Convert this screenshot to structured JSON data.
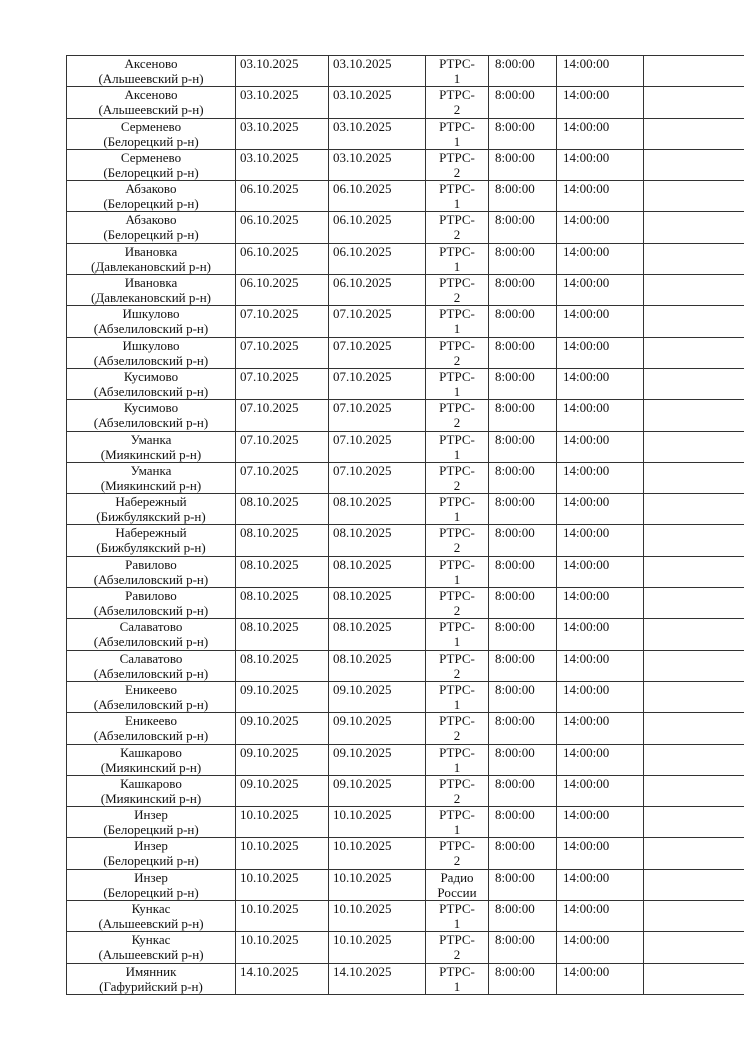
{
  "rows": [
    {
      "place": "Аксеново",
      "district": "(Альшеевский р-н)",
      "date_from": "03.10.2025",
      "date_to": "03.10.2025",
      "channel": "РТРС-",
      "channel_num": "1",
      "start": "8:00:00",
      "end": "14:00:00"
    },
    {
      "place": "Аксеново",
      "district": "(Альшеевский р-н)",
      "date_from": "03.10.2025",
      "date_to": "03.10.2025",
      "channel": "РТРС-",
      "channel_num": "2",
      "start": "8:00:00",
      "end": "14:00:00"
    },
    {
      "place": "Серменево",
      "district": "(Белорецкий р-н)",
      "date_from": "03.10.2025",
      "date_to": "03.10.2025",
      "channel": "РТРС-",
      "channel_num": "1",
      "start": "8:00:00",
      "end": "14:00:00"
    },
    {
      "place": "Серменево",
      "district": "(Белорецкий р-н)",
      "date_from": "03.10.2025",
      "date_to": "03.10.2025",
      "channel": "РТРС-",
      "channel_num": "2",
      "start": "8:00:00",
      "end": "14:00:00"
    },
    {
      "place": "Абзаково",
      "district": "(Белорецкий р-н)",
      "date_from": "06.10.2025",
      "date_to": "06.10.2025",
      "channel": "РТРС-",
      "channel_num": "1",
      "start": "8:00:00",
      "end": "14:00:00"
    },
    {
      "place": "Абзаково",
      "district": "(Белорецкий р-н)",
      "date_from": "06.10.2025",
      "date_to": "06.10.2025",
      "channel": "РТРС-",
      "channel_num": "2",
      "start": "8:00:00",
      "end": "14:00:00"
    },
    {
      "place": "Ивановка",
      "district": "(Давлекановский р-н)",
      "date_from": "06.10.2025",
      "date_to": "06.10.2025",
      "channel": "РТРС-",
      "channel_num": "1",
      "start": "8:00:00",
      "end": "14:00:00"
    },
    {
      "place": "Ивановка",
      "district": "(Давлекановский р-н)",
      "date_from": "06.10.2025",
      "date_to": "06.10.2025",
      "channel": "РТРС-",
      "channel_num": "2",
      "start": "8:00:00",
      "end": "14:00:00"
    },
    {
      "place": "Ишкулово",
      "district": "(Абзелиловский р-н)",
      "date_from": "07.10.2025",
      "date_to": "07.10.2025",
      "channel": "РТРС-",
      "channel_num": "1",
      "start": "8:00:00",
      "end": "14:00:00"
    },
    {
      "place": "Ишкулово",
      "district": "(Абзелиловский р-н)",
      "date_from": "07.10.2025",
      "date_to": "07.10.2025",
      "channel": "РТРС-",
      "channel_num": "2",
      "start": "8:00:00",
      "end": "14:00:00"
    },
    {
      "place": "Кусимово",
      "district": "(Абзелиловский р-н)",
      "date_from": "07.10.2025",
      "date_to": "07.10.2025",
      "channel": "РТРС-",
      "channel_num": "1",
      "start": "8:00:00",
      "end": "14:00:00"
    },
    {
      "place": "Кусимово",
      "district": "(Абзелиловский р-н)",
      "date_from": "07.10.2025",
      "date_to": "07.10.2025",
      "channel": "РТРС-",
      "channel_num": "2",
      "start": "8:00:00",
      "end": "14:00:00"
    },
    {
      "place": "Уманка",
      "district": "(Миякинский р-н)",
      "date_from": "07.10.2025",
      "date_to": "07.10.2025",
      "channel": "РТРС-",
      "channel_num": "1",
      "start": "8:00:00",
      "end": "14:00:00"
    },
    {
      "place": "Уманка",
      "district": "(Миякинский р-н)",
      "date_from": "07.10.2025",
      "date_to": "07.10.2025",
      "channel": "РТРС-",
      "channel_num": "2",
      "start": "8:00:00",
      "end": "14:00:00"
    },
    {
      "place": "Набережный",
      "district": "(Бижбулякский р-н)",
      "date_from": "08.10.2025",
      "date_to": "08.10.2025",
      "channel": "РТРС-",
      "channel_num": "1",
      "start": "8:00:00",
      "end": "14:00:00"
    },
    {
      "place": "Набережный",
      "district": "(Бижбулякский р-н)",
      "date_from": "08.10.2025",
      "date_to": "08.10.2025",
      "channel": "РТРС-",
      "channel_num": "2",
      "start": "8:00:00",
      "end": "14:00:00"
    },
    {
      "place": "Равилово",
      "district": "(Абзелиловский р-н)",
      "date_from": "08.10.2025",
      "date_to": "08.10.2025",
      "channel": "РТРС-",
      "channel_num": "1",
      "start": "8:00:00",
      "end": "14:00:00"
    },
    {
      "place": "Равилово",
      "district": "(Абзелиловский р-н)",
      "date_from": "08.10.2025",
      "date_to": "08.10.2025",
      "channel": "РТРС-",
      "channel_num": "2",
      "start": "8:00:00",
      "end": "14:00:00"
    },
    {
      "place": "Салаватово",
      "district": "(Абзелиловский р-н)",
      "date_from": "08.10.2025",
      "date_to": "08.10.2025",
      "channel": "РТРС-",
      "channel_num": "1",
      "start": "8:00:00",
      "end": "14:00:00"
    },
    {
      "place": "Салаватово",
      "district": "(Абзелиловский р-н)",
      "date_from": "08.10.2025",
      "date_to": "08.10.2025",
      "channel": "РТРС-",
      "channel_num": "2",
      "start": "8:00:00",
      "end": "14:00:00"
    },
    {
      "place": "Еникеево",
      "district": "(Абзелиловский р-н)",
      "date_from": "09.10.2025",
      "date_to": "09.10.2025",
      "channel": "РТРС-",
      "channel_num": "1",
      "start": "8:00:00",
      "end": "14:00:00"
    },
    {
      "place": "Еникеево",
      "district": "(Абзелиловский р-н)",
      "date_from": "09.10.2025",
      "date_to": "09.10.2025",
      "channel": "РТРС-",
      "channel_num": "2",
      "start": "8:00:00",
      "end": "14:00:00"
    },
    {
      "place": "Кашкарово",
      "district": "(Миякинский р-н)",
      "date_from": "09.10.2025",
      "date_to": "09.10.2025",
      "channel": "РТРС-",
      "channel_num": "1",
      "start": "8:00:00",
      "end": "14:00:00"
    },
    {
      "place": "Кашкарово",
      "district": "(Миякинский р-н)",
      "date_from": "09.10.2025",
      "date_to": "09.10.2025",
      "channel": "РТРС-",
      "channel_num": "2",
      "start": "8:00:00",
      "end": "14:00:00"
    },
    {
      "place": "Инзер",
      "district": "(Белорецкий р-н)",
      "date_from": "10.10.2025",
      "date_to": "10.10.2025",
      "channel": "РТРС-",
      "channel_num": "1",
      "start": "8:00:00",
      "end": "14:00:00"
    },
    {
      "place": "Инзер",
      "district": "(Белорецкий р-н)",
      "date_from": "10.10.2025",
      "date_to": "10.10.2025",
      "channel": "РТРС-",
      "channel_num": "2",
      "start": "8:00:00",
      "end": "14:00:00"
    },
    {
      "place": "Инзер",
      "district": "(Белорецкий р-н)",
      "date_from": "10.10.2025",
      "date_to": "10.10.2025",
      "channel": "Радио",
      "channel_num": "России",
      "start": "8:00:00",
      "end": "14:00:00"
    },
    {
      "place": "Кункас",
      "district": "(Альшеевский р-н)",
      "date_from": "10.10.2025",
      "date_to": "10.10.2025",
      "channel": "РТРС-",
      "channel_num": "1",
      "start": "8:00:00",
      "end": "14:00:00"
    },
    {
      "place": "Кункас",
      "district": "(Альшеевский р-н)",
      "date_from": "10.10.2025",
      "date_to": "10.10.2025",
      "channel": "РТРС-",
      "channel_num": "2",
      "start": "8:00:00",
      "end": "14:00:00"
    },
    {
      "place": "Имянник",
      "district": "(Гафурийский р-н)",
      "date_from": "14.10.2025",
      "date_to": "14.10.2025",
      "channel": "РТРС-",
      "channel_num": "1",
      "start": "8:00:00",
      "end": "14:00:00"
    }
  ]
}
